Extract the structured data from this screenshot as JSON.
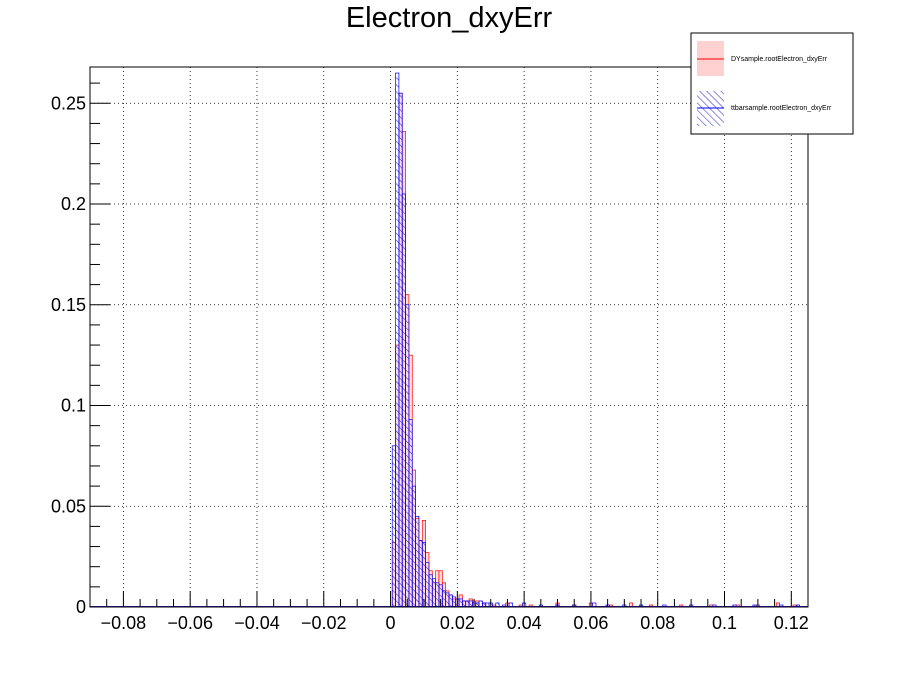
{
  "chart_data": {
    "type": "histogram",
    "title": "Electron_dxyErr",
    "xlabel": "",
    "ylabel": "",
    "xlim": [
      -0.09,
      0.125
    ],
    "ylim": [
      0,
      0.268
    ],
    "bin_width": 0.001,
    "grid": true,
    "legend_position": "top-right",
    "x_ticks": [
      {
        "value": -0.08,
        "label": "−0.08"
      },
      {
        "value": -0.06,
        "label": "−0.06"
      },
      {
        "value": -0.04,
        "label": "−0.04"
      },
      {
        "value": -0.02,
        "label": "−0.02"
      },
      {
        "value": 0,
        "label": "0"
      },
      {
        "value": 0.02,
        "label": "0.02"
      },
      {
        "value": 0.04,
        "label": "0.04"
      },
      {
        "value": 0.06,
        "label": "0.06"
      },
      {
        "value": 0.08,
        "label": "0.08"
      },
      {
        "value": 0.1,
        "label": "0.1"
      },
      {
        "value": 0.12,
        "label": "0.12"
      }
    ],
    "y_ticks": [
      {
        "value": 0,
        "label": "0"
      },
      {
        "value": 0.05,
        "label": "0.05"
      },
      {
        "value": 0.1,
        "label": "0.1"
      },
      {
        "value": 0.15,
        "label": "0.15"
      },
      {
        "value": 0.2,
        "label": "0.2"
      },
      {
        "value": 0.25,
        "label": "0.25"
      }
    ],
    "series": [
      {
        "name": "DYsample.rootElectron_dxyErr",
        "color": "#ff0000",
        "fill_color": "#ffd0d0",
        "fill": "solid",
        "bins": [
          [
            0.001,
            0.032
          ],
          [
            0.002,
            0.13
          ],
          [
            0.003,
            0.255
          ],
          [
            0.004,
            0.236
          ],
          [
            0.005,
            0.155
          ],
          [
            0.006,
            0.125
          ],
          [
            0.007,
            0.068
          ],
          [
            0.008,
            0.044
          ],
          [
            0.009,
            0.033
          ],
          [
            0.01,
            0.043
          ],
          [
            0.011,
            0.027
          ],
          [
            0.012,
            0.018
          ],
          [
            0.013,
            0.012
          ],
          [
            0.014,
            0.018
          ],
          [
            0.015,
            0.018
          ],
          [
            0.016,
            0.012
          ],
          [
            0.017,
            0.008
          ],
          [
            0.018,
            0.006
          ],
          [
            0.019,
            0.004
          ],
          [
            0.02,
            0.004
          ],
          [
            0.021,
            0.006
          ],
          [
            0.022,
            0.003
          ],
          [
            0.023,
            0.003
          ],
          [
            0.024,
            0.004
          ],
          [
            0.025,
            0.003
          ],
          [
            0.026,
            0.003
          ],
          [
            0.028,
            0.002
          ],
          [
            0.031,
            0.001
          ],
          [
            0.035,
            0.002
          ],
          [
            0.039,
            0.001
          ],
          [
            0.042,
            0.001
          ],
          [
            0.05,
            0.002
          ],
          [
            0.055,
            0.001
          ],
          [
            0.06,
            0.002
          ],
          [
            0.066,
            0.001
          ],
          [
            0.072,
            0.002
          ],
          [
            0.078,
            0.001
          ],
          [
            0.087,
            0.001
          ],
          [
            0.096,
            0.001
          ],
          [
            0.104,
            0.001
          ],
          [
            0.11,
            0.001
          ],
          [
            0.116,
            0.002
          ],
          [
            0.121,
            0.001
          ]
        ]
      },
      {
        "name": "ttbarsample.rootElectron_dxyErr",
        "color": "#0000ff",
        "fill_color": "#3030cc",
        "fill": "hatched",
        "bins": [
          [
            0.001,
            0.08
          ],
          [
            0.002,
            0.265
          ],
          [
            0.003,
            0.255
          ],
          [
            0.004,
            0.205
          ],
          [
            0.005,
            0.15
          ],
          [
            0.006,
            0.093
          ],
          [
            0.007,
            0.06
          ],
          [
            0.008,
            0.045
          ],
          [
            0.009,
            0.033
          ],
          [
            0.01,
            0.032
          ],
          [
            0.011,
            0.022
          ],
          [
            0.012,
            0.016
          ],
          [
            0.013,
            0.014
          ],
          [
            0.014,
            0.012
          ],
          [
            0.015,
            0.011
          ],
          [
            0.016,
            0.008
          ],
          [
            0.017,
            0.007
          ],
          [
            0.018,
            0.006
          ],
          [
            0.019,
            0.005
          ],
          [
            0.02,
            0.004
          ],
          [
            0.021,
            0.004
          ],
          [
            0.022,
            0.003
          ],
          [
            0.023,
            0.003
          ],
          [
            0.024,
            0.003
          ],
          [
            0.025,
            0.002
          ],
          [
            0.026,
            0.002
          ],
          [
            0.027,
            0.003
          ],
          [
            0.028,
            0.002
          ],
          [
            0.029,
            0.002
          ],
          [
            0.03,
            0.002
          ],
          [
            0.032,
            0.002
          ],
          [
            0.034,
            0.001
          ],
          [
            0.036,
            0.002
          ],
          [
            0.04,
            0.002
          ],
          [
            0.045,
            0.001
          ],
          [
            0.05,
            0.001
          ],
          [
            0.055,
            0.001
          ],
          [
            0.061,
            0.002
          ],
          [
            0.065,
            0.001
          ],
          [
            0.07,
            0.001
          ],
          [
            0.075,
            0.001
          ],
          [
            0.082,
            0.001
          ],
          [
            0.09,
            0.001
          ],
          [
            0.097,
            0.001
          ],
          [
            0.103,
            0.001
          ],
          [
            0.109,
            0.001
          ],
          [
            0.117,
            0.001
          ],
          [
            0.122,
            0.001
          ]
        ]
      }
    ]
  }
}
